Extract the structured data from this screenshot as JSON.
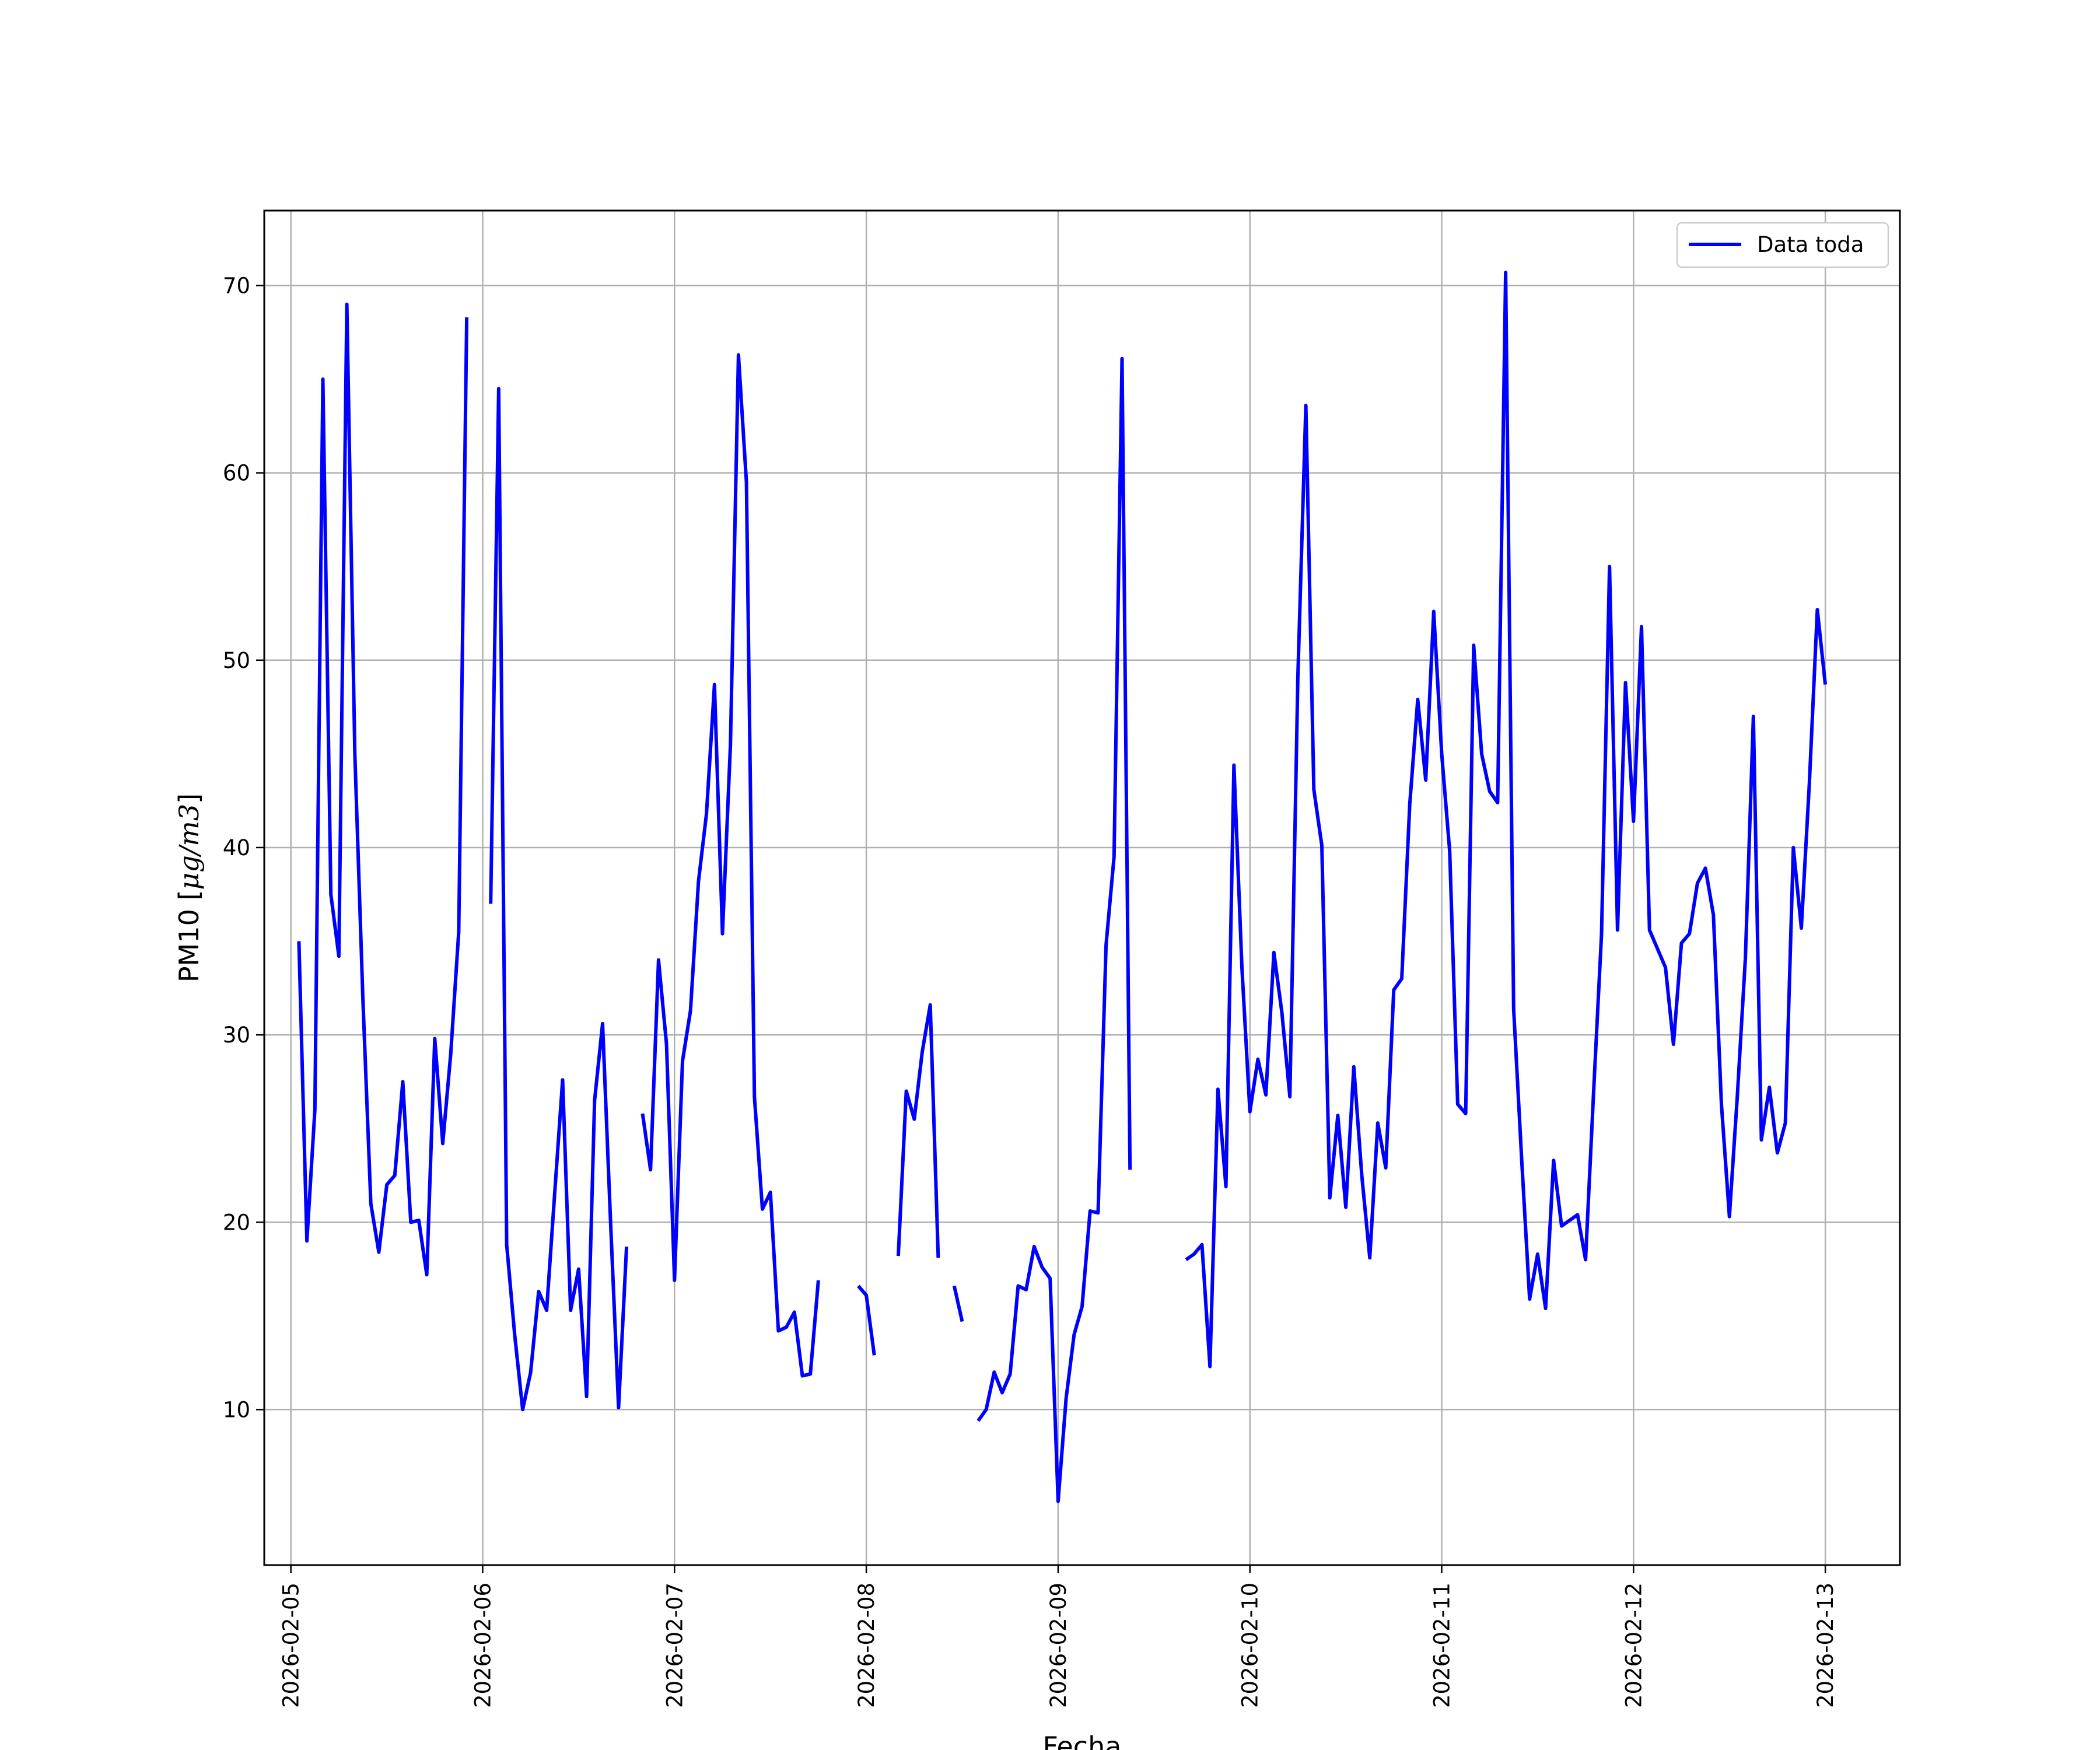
{
  "chart_data": {
    "type": "line",
    "xlabel": "Fecha",
    "ylabel_prefix": "PM10 [",
    "ylabel_unit_math": "μg/m3",
    "ylabel_suffix": "]",
    "x_tick_labels": [
      "2026-02-05",
      "2026-02-06",
      "2026-02-07",
      "2026-02-08",
      "2026-02-09",
      "2026-02-10",
      "2026-02-11",
      "2026-02-12",
      "2026-02-13"
    ],
    "y_ticks": [
      10,
      20,
      30,
      40,
      50,
      60,
      70
    ],
    "xlim": [
      "2026-02-04T20:40",
      "2026-02-13T09:20"
    ],
    "ylim": [
      1.7,
      74.0
    ],
    "grid": true,
    "legend_position": "top-right",
    "series": [
      {
        "name": "Data toda",
        "color": "#0000ff",
        "segments": [
          [
            [
              "2026-02-05T01:00",
              35
            ],
            [
              "2026-02-05T02:00",
              19
            ],
            [
              "2026-02-05T03:00",
              26
            ],
            [
              "2026-02-05T04:00",
              65
            ],
            [
              "2026-02-05T05:00",
              37.5
            ],
            [
              "2026-02-05T06:00",
              34.2
            ],
            [
              "2026-02-05T07:00",
              69
            ],
            [
              "2026-02-05T08:00",
              45
            ],
            [
              "2026-02-05T09:00",
              32
            ],
            [
              "2026-02-05T10:00",
              21
            ],
            [
              "2026-02-05T11:00",
              18.4
            ],
            [
              "2026-02-05T12:00",
              22
            ],
            [
              "2026-02-05T13:00",
              22.5
            ],
            [
              "2026-02-05T14:00",
              27.5
            ],
            [
              "2026-02-05T15:00",
              20
            ],
            [
              "2026-02-05T16:00",
              20.1
            ],
            [
              "2026-02-05T17:00",
              17.2
            ],
            [
              "2026-02-05T18:00",
              29.8
            ],
            [
              "2026-02-05T19:00",
              24.2
            ],
            [
              "2026-02-05T20:00",
              29
            ],
            [
              "2026-02-05T21:00",
              35.5
            ],
            [
              "2026-02-05T22:00",
              68.3
            ]
          ],
          [
            [
              "2026-02-06T01:00",
              37
            ],
            [
              "2026-02-06T02:00",
              64.5
            ],
            [
              "2026-02-06T03:00",
              18.8
            ],
            [
              "2026-02-06T04:00",
              14
            ],
            [
              "2026-02-06T05:00",
              10
            ],
            [
              "2026-02-06T06:00",
              12
            ],
            [
              "2026-02-06T07:00",
              16.3
            ],
            [
              "2026-02-06T08:00",
              15.3
            ],
            [
              "2026-02-06T09:00",
              21.5
            ],
            [
              "2026-02-06T10:00",
              27.6
            ],
            [
              "2026-02-06T11:00",
              15.3
            ],
            [
              "2026-02-06T12:00",
              17.5
            ],
            [
              "2026-02-06T13:00",
              10.7
            ],
            [
              "2026-02-06T14:00",
              26.5
            ],
            [
              "2026-02-06T15:00",
              30.6
            ],
            [
              "2026-02-06T16:00",
              20
            ],
            [
              "2026-02-06T17:00",
              10.1
            ],
            [
              "2026-02-06T18:00",
              18.7
            ]
          ],
          [
            [
              "2026-02-06T20:00",
              25.8
            ],
            [
              "2026-02-06T21:00",
              22.8
            ],
            [
              "2026-02-06T22:00",
              34
            ],
            [
              "2026-02-06T23:00",
              29.5
            ],
            [
              "2026-02-07T00:00",
              16.9
            ],
            [
              "2026-02-07T01:00",
              28.6
            ],
            [
              "2026-02-07T02:00",
              31.3
            ],
            [
              "2026-02-07T03:00",
              38.2
            ],
            [
              "2026-02-07T04:00",
              41.8
            ],
            [
              "2026-02-07T05:00",
              48.7
            ],
            [
              "2026-02-07T06:00",
              35.4
            ],
            [
              "2026-02-07T07:00",
              45.5
            ],
            [
              "2026-02-07T08:00",
              66.3
            ],
            [
              "2026-02-07T09:00",
              59.5
            ],
            [
              "2026-02-07T10:00",
              26.7
            ],
            [
              "2026-02-07T11:00",
              20.7
            ],
            [
              "2026-02-07T12:00",
              21.6
            ],
            [
              "2026-02-07T13:00",
              14.2
            ],
            [
              "2026-02-07T14:00",
              14.4
            ],
            [
              "2026-02-07T15:00",
              15.2
            ],
            [
              "2026-02-07T16:00",
              11.8
            ],
            [
              "2026-02-07T17:00",
              11.9
            ],
            [
              "2026-02-07T18:00",
              16.9
            ]
          ],
          [
            [
              "2026-02-07T23:00",
              16.6
            ],
            [
              "2026-02-08T00:00",
              16.1
            ],
            [
              "2026-02-08T01:00",
              12.9
            ]
          ],
          [
            [
              "2026-02-08T04:00",
              18.2
            ],
            [
              "2026-02-08T05:00",
              27
            ],
            [
              "2026-02-08T06:00",
              25.5
            ],
            [
              "2026-02-08T07:00",
              29.1
            ],
            [
              "2026-02-08T08:00",
              31.6
            ],
            [
              "2026-02-08T09:00",
              18.1
            ]
          ],
          [
            [
              "2026-02-08T11:00",
              16.6
            ],
            [
              "2026-02-08T12:00",
              14.7
            ]
          ],
          [
            [
              "2026-02-08T14:00",
              9.4
            ],
            [
              "2026-02-08T15:00",
              10
            ],
            [
              "2026-02-08T16:00",
              12
            ],
            [
              "2026-02-08T17:00",
              10.9
            ],
            [
              "2026-02-08T18:00",
              11.9
            ],
            [
              "2026-02-08T19:00",
              16.6
            ],
            [
              "2026-02-08T20:00",
              16.4
            ],
            [
              "2026-02-08T21:00",
              18.7
            ],
            [
              "2026-02-08T22:00",
              17.6
            ],
            [
              "2026-02-08T23:00",
              17
            ],
            [
              "2026-02-09T00:00",
              5.1
            ],
            [
              "2026-02-09T01:00",
              10.6
            ],
            [
              "2026-02-09T02:00",
              14
            ],
            [
              "2026-02-09T03:00",
              15.5
            ],
            [
              "2026-02-09T04:00",
              20.6
            ],
            [
              "2026-02-09T05:00",
              20.5
            ],
            [
              "2026-02-09T06:00",
              34.8
            ],
            [
              "2026-02-09T07:00",
              39.5
            ],
            [
              "2026-02-09T08:00",
              66.1
            ],
            [
              "2026-02-09T09:00",
              22.8
            ]
          ],
          [
            [
              "2026-02-09T16:00",
              18
            ],
            [
              "2026-02-09T17:00",
              18.3
            ],
            [
              "2026-02-09T18:00",
              18.8
            ],
            [
              "2026-02-09T19:00",
              12.3
            ],
            [
              "2026-02-09T20:00",
              27.1
            ],
            [
              "2026-02-09T21:00",
              21.9
            ],
            [
              "2026-02-09T22:00",
              44.4
            ],
            [
              "2026-02-09T23:00",
              33.6
            ],
            [
              "2026-02-10T00:00",
              25.9
            ],
            [
              "2026-02-10T01:00",
              28.7
            ],
            [
              "2026-02-10T02:00",
              26.8
            ],
            [
              "2026-02-10T03:00",
              34.4
            ],
            [
              "2026-02-10T04:00",
              31.2
            ],
            [
              "2026-02-10T05:00",
              26.7
            ],
            [
              "2026-02-10T06:00",
              49.1
            ],
            [
              "2026-02-10T07:00",
              63.6
            ],
            [
              "2026-02-10T08:00",
              43.1
            ],
            [
              "2026-02-10T09:00",
              40.1
            ],
            [
              "2026-02-10T10:00",
              21.3
            ],
            [
              "2026-02-10T11:00",
              25.7
            ],
            [
              "2026-02-10T12:00",
              20.8
            ],
            [
              "2026-02-10T13:00",
              28.3
            ],
            [
              "2026-02-10T14:00",
              22.5
            ],
            [
              "2026-02-10T15:00",
              18.1
            ],
            [
              "2026-02-10T16:00",
              25.3
            ],
            [
              "2026-02-10T17:00",
              22.9
            ],
            [
              "2026-02-10T18:00",
              32.4
            ],
            [
              "2026-02-10T19:00",
              33
            ],
            [
              "2026-02-10T20:00",
              42.3
            ],
            [
              "2026-02-10T21:00",
              47.9
            ],
            [
              "2026-02-10T22:00",
              43.6
            ],
            [
              "2026-02-10T23:00",
              52.6
            ],
            [
              "2026-02-11T00:00",
              45
            ],
            [
              "2026-02-11T01:00",
              39.8
            ],
            [
              "2026-02-11T02:00",
              26.3
            ],
            [
              "2026-02-11T03:00",
              25.8
            ],
            [
              "2026-02-11T04:00",
              50.8
            ],
            [
              "2026-02-11T05:00",
              45
            ],
            [
              "2026-02-11T06:00",
              43
            ],
            [
              "2026-02-11T07:00",
              42.4
            ],
            [
              "2026-02-11T08:00",
              70.7
            ],
            [
              "2026-02-11T09:00",
              31.4
            ],
            [
              "2026-02-11T10:00",
              23.4
            ],
            [
              "2026-02-11T11:00",
              15.9
            ],
            [
              "2026-02-11T12:00",
              18.3
            ],
            [
              "2026-02-11T13:00",
              15.4
            ],
            [
              "2026-02-11T14:00",
              23.3
            ],
            [
              "2026-02-11T15:00",
              19.8
            ],
            [
              "2026-02-11T16:00",
              20.1
            ],
            [
              "2026-02-11T17:00",
              20.4
            ],
            [
              "2026-02-11T18:00",
              18
            ],
            [
              "2026-02-11T19:00",
              26.9
            ],
            [
              "2026-02-11T20:00",
              35.4
            ],
            [
              "2026-02-11T21:00",
              55
            ],
            [
              "2026-02-11T22:00",
              35.6
            ],
            [
              "2026-02-11T23:00",
              48.8
            ],
            [
              "2026-02-12T00:00",
              41.4
            ],
            [
              "2026-02-12T01:00",
              51.8
            ],
            [
              "2026-02-12T02:00",
              35.6
            ],
            [
              "2026-02-12T03:00",
              34.6
            ],
            [
              "2026-02-12T04:00",
              33.6
            ],
            [
              "2026-02-12T05:00",
              29.5
            ],
            [
              "2026-02-12T06:00",
              34.9
            ],
            [
              "2026-02-12T07:00",
              35.4
            ],
            [
              "2026-02-12T08:00",
              38.1
            ],
            [
              "2026-02-12T09:00",
              38.9
            ],
            [
              "2026-02-12T10:00",
              36.4
            ],
            [
              "2026-02-12T11:00",
              26.3
            ],
            [
              "2026-02-12T12:00",
              20.3
            ],
            [
              "2026-02-12T13:00",
              26.8
            ],
            [
              "2026-02-12T14:00",
              34.1
            ],
            [
              "2026-02-12T15:00",
              47
            ],
            [
              "2026-02-12T16:00",
              24.4
            ],
            [
              "2026-02-12T17:00",
              27.2
            ],
            [
              "2026-02-12T18:00",
              23.7
            ],
            [
              "2026-02-12T19:00",
              25.3
            ],
            [
              "2026-02-12T20:00",
              40
            ],
            [
              "2026-02-12T21:00",
              35.7
            ],
            [
              "2026-02-12T22:00",
              43.4
            ],
            [
              "2026-02-12T23:00",
              52.7
            ],
            [
              "2026-02-13T00:00",
              48.7
            ]
          ]
        ]
      }
    ]
  }
}
